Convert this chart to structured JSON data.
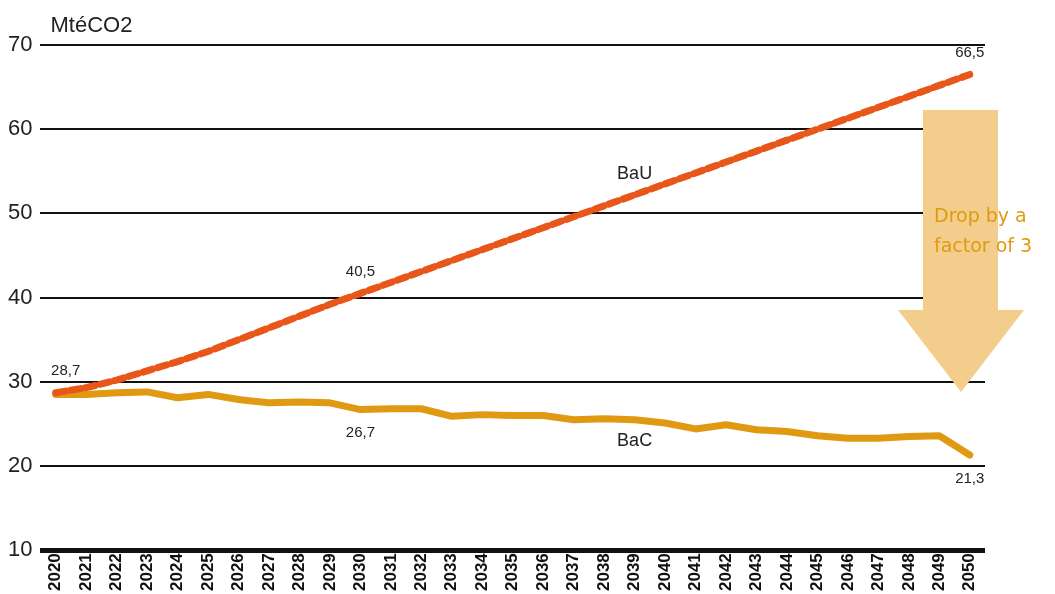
{
  "chart_data": {
    "type": "line",
    "ylabel": "MtéCO2",
    "categories": [
      "2020",
      "2021",
      "2022",
      "2023",
      "2024",
      "2025",
      "2026",
      "2027",
      "2028",
      "2029",
      "2030",
      "2031",
      "2032",
      "2033",
      "2034",
      "2035",
      "2036",
      "2037",
      "2038",
      "2039",
      "2040",
      "2041",
      "2042",
      "2043",
      "2044",
      "2045",
      "2046",
      "2047",
      "2048",
      "2049",
      "2050"
    ],
    "ylim": [
      10,
      70
    ],
    "yticks": [
      10,
      20,
      30,
      40,
      50,
      60,
      70
    ],
    "grid": "y",
    "legend": false,
    "marker": "none",
    "series": [
      {
        "name": "BaU",
        "color": "#e8561a",
        "line_style": "dashed",
        "values": [
          28.7,
          29.3,
          30.2,
          31.3,
          32.4,
          33.6,
          35.0,
          36.4,
          37.8,
          39.2,
          40.5,
          41.8,
          43.1,
          44.4,
          45.7,
          47.0,
          48.3,
          49.6,
          50.9,
          52.2,
          53.5,
          54.8,
          56.1,
          57.4,
          58.7,
          60.0,
          61.3,
          62.6,
          63.9,
          65.2,
          66.5
        ],
        "value_labels": [
          "28,7",
          null,
          null,
          null,
          null,
          null,
          null,
          null,
          null,
          null,
          "40,5",
          null,
          null,
          null,
          null,
          null,
          null,
          null,
          null,
          null,
          null,
          null,
          null,
          null,
          null,
          null,
          null,
          null,
          null,
          null,
          "66,5"
        ]
      },
      {
        "name": "BaC",
        "color": "#e09a12",
        "line_style": "solid",
        "values": [
          28.5,
          28.5,
          28.7,
          28.8,
          28.1,
          28.5,
          27.9,
          27.5,
          27.6,
          27.5,
          26.7,
          26.8,
          26.8,
          25.9,
          26.1,
          26.0,
          26.0,
          25.5,
          25.6,
          25.5,
          25.1,
          24.4,
          24.9,
          24.3,
          24.1,
          23.6,
          23.3,
          23.3,
          23.5,
          23.6,
          21.3
        ],
        "value_labels": [
          null,
          null,
          null,
          null,
          null,
          null,
          null,
          null,
          null,
          null,
          "26,7",
          null,
          null,
          null,
          null,
          null,
          null,
          null,
          null,
          null,
          null,
          null,
          null,
          null,
          null,
          null,
          null,
          null,
          null,
          null,
          "21,3"
        ]
      }
    ],
    "annotations": [
      "Drop by a factor of 3"
    ]
  }
}
